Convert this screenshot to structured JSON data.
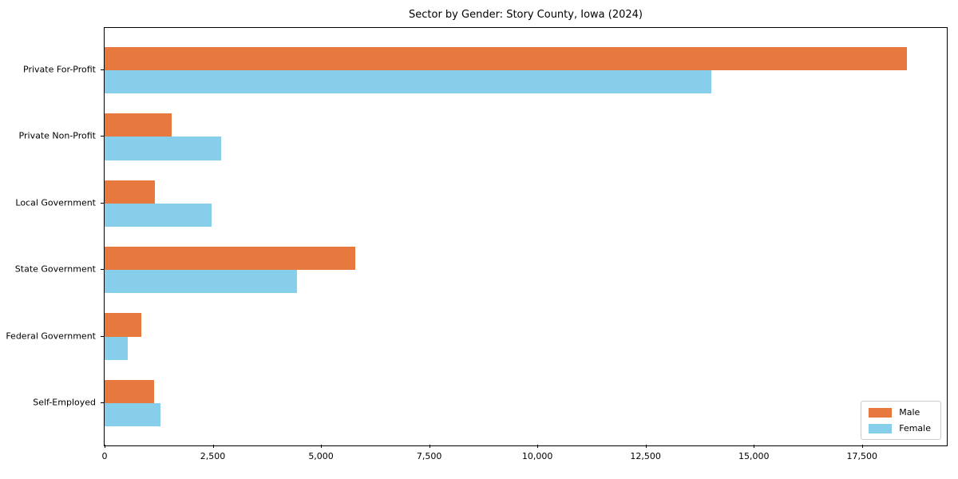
{
  "title": "Sector by Gender: Story County, Iowa (2024)",
  "chart_data": {
    "type": "bar",
    "orientation": "horizontal",
    "title": "Sector by Gender: Story County, Iowa (2024)",
    "categories": [
      "Private For-Profit",
      "Private Non-Profit",
      "Local Government",
      "State Government",
      "Federal Government",
      "Self-Employed"
    ],
    "series": [
      {
        "name": "Male",
        "color": "#e8793e",
        "values": [
          18530,
          1550,
          1170,
          5800,
          855,
          1140
        ]
      },
      {
        "name": "Female",
        "color": "#87ceeb",
        "values": [
          14010,
          2700,
          2480,
          4440,
          530,
          1285
        ]
      }
    ],
    "xlabel": "",
    "ylabel": "",
    "xlim": [
      0,
      19460
    ],
    "xticks": [
      0,
      2500,
      5000,
      7500,
      10000,
      12500,
      15000,
      17500
    ],
    "xtick_labels": [
      "0",
      "2,500",
      "5,000",
      "7,500",
      "10,000",
      "12,500",
      "15,000",
      "17,500"
    ],
    "grid": false,
    "frame": true,
    "legend_position": "lower right"
  },
  "legend": {
    "items": [
      {
        "label": "Male",
        "color": "#e8793e"
      },
      {
        "label": "Female",
        "color": "#87ceeb"
      }
    ]
  }
}
